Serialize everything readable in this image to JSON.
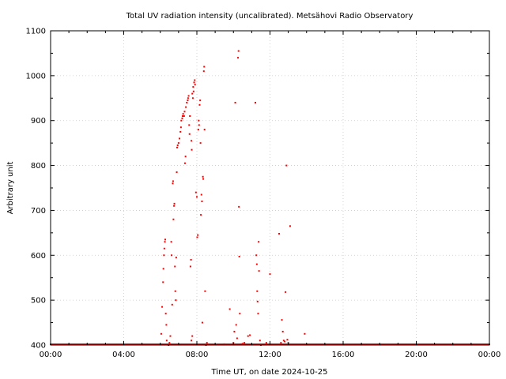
{
  "chart_data": {
    "type": "scatter",
    "title": "Total UV radiation intensity (uncalibrated). Metsähovi Radio Observatory",
    "xlabel": "Time UT, on date 2024-10-25",
    "ylabel": "Arbitrary unit",
    "xlim": [
      0,
      24
    ],
    "ylim": [
      400,
      1100
    ],
    "x_ticks": [
      0,
      4,
      8,
      12,
      16,
      20,
      24
    ],
    "x_tick_labels": [
      "00:00",
      "04:00",
      "08:00",
      "12:00",
      "16:00",
      "20:00",
      "00:00"
    ],
    "y_ticks": [
      400,
      500,
      600,
      700,
      800,
      900,
      1000,
      1100
    ],
    "y_tick_labels": [
      "400",
      "500",
      "600",
      "700",
      "800",
      "900",
      "1000",
      "1100"
    ],
    "grid": true,
    "marker_color": "#ff0000",
    "baseline": {
      "value": 400,
      "x_start": 0,
      "x_end": 24
    },
    "series": [
      {
        "points": [
          [
            6.05,
            425
          ],
          [
            6.1,
            485
          ],
          [
            6.15,
            540
          ],
          [
            6.17,
            570
          ],
          [
            6.2,
            600
          ],
          [
            6.22,
            615
          ],
          [
            6.25,
            630
          ],
          [
            6.27,
            635
          ],
          [
            6.3,
            470
          ],
          [
            6.33,
            445
          ],
          [
            6.35,
            410
          ],
          [
            6.45,
            400
          ],
          [
            6.5,
            405
          ],
          [
            6.55,
            420
          ],
          [
            6.6,
            630
          ],
          [
            6.62,
            600
          ],
          [
            6.65,
            490
          ],
          [
            6.68,
            760
          ],
          [
            6.7,
            765
          ],
          [
            6.72,
            680
          ],
          [
            6.75,
            710
          ],
          [
            6.77,
            715
          ],
          [
            6.8,
            575
          ],
          [
            6.82,
            520
          ],
          [
            6.85,
            500
          ],
          [
            6.87,
            595
          ],
          [
            6.9,
            785
          ],
          [
            6.92,
            840
          ],
          [
            6.95,
            845
          ],
          [
            7.0,
            850
          ],
          [
            7.05,
            860
          ],
          [
            7.1,
            875
          ],
          [
            7.13,
            885
          ],
          [
            7.15,
            900
          ],
          [
            7.2,
            905
          ],
          [
            7.22,
            910
          ],
          [
            7.25,
            915
          ],
          [
            7.3,
            910
          ],
          [
            7.33,
            920
          ],
          [
            7.35,
            805
          ],
          [
            7.38,
            820
          ],
          [
            7.4,
            930
          ],
          [
            7.45,
            940
          ],
          [
            7.5,
            945
          ],
          [
            7.52,
            950
          ],
          [
            7.55,
            955
          ],
          [
            7.58,
            890
          ],
          [
            7.6,
            870
          ],
          [
            7.62,
            910
          ],
          [
            7.65,
            575
          ],
          [
            7.68,
            590
          ],
          [
            7.7,
            855
          ],
          [
            7.72,
            835
          ],
          [
            7.75,
            960
          ],
          [
            7.78,
            950
          ],
          [
            7.8,
            975
          ],
          [
            7.82,
            965
          ],
          [
            7.85,
            985
          ],
          [
            7.88,
            990
          ],
          [
            7.9,
            980
          ],
          [
            7.95,
            740
          ],
          [
            8.0,
            730
          ],
          [
            8.02,
            640
          ],
          [
            8.05,
            645
          ],
          [
            8.08,
            880
          ],
          [
            8.1,
            900
          ],
          [
            8.12,
            890
          ],
          [
            8.15,
            935
          ],
          [
            8.18,
            945
          ],
          [
            8.2,
            850
          ],
          [
            8.22,
            690
          ],
          [
            8.25,
            735
          ],
          [
            8.28,
            720
          ],
          [
            8.3,
            450
          ],
          [
            8.33,
            775
          ],
          [
            8.35,
            770
          ],
          [
            8.38,
            1010
          ],
          [
            8.4,
            1020
          ],
          [
            8.42,
            880
          ],
          [
            8.45,
            520
          ],
          [
            8.5,
            400
          ],
          [
            8.55,
            405
          ],
          [
            7.7,
            410
          ],
          [
            7.75,
            420
          ],
          [
            9.5,
            402
          ],
          [
            9.8,
            480
          ],
          [
            10.0,
            405
          ],
          [
            10.05,
            430
          ],
          [
            10.1,
            940
          ],
          [
            10.15,
            445
          ],
          [
            10.2,
            415
          ],
          [
            10.25,
            1040
          ],
          [
            10.28,
            1055
          ],
          [
            10.3,
            708
          ],
          [
            10.32,
            597
          ],
          [
            10.35,
            470
          ],
          [
            10.4,
            402
          ],
          [
            10.5,
            403
          ],
          [
            10.6,
            405
          ],
          [
            10.8,
            420
          ],
          [
            10.9,
            422
          ],
          [
            11.2,
            940
          ],
          [
            11.25,
            600
          ],
          [
            11.28,
            580
          ],
          [
            11.3,
            520
          ],
          [
            11.32,
            497
          ],
          [
            11.35,
            470
          ],
          [
            11.38,
            630
          ],
          [
            11.4,
            565
          ],
          [
            11.45,
            410
          ],
          [
            11.5,
            400
          ],
          [
            11.8,
            405
          ],
          [
            12.0,
            558
          ],
          [
            12.5,
            648
          ],
          [
            12.6,
            405
          ],
          [
            12.65,
            456
          ],
          [
            12.7,
            430
          ],
          [
            12.75,
            410
          ],
          [
            12.8,
            408
          ],
          [
            12.85,
            518
          ],
          [
            12.9,
            800
          ],
          [
            12.95,
            412
          ],
          [
            13.0,
            405
          ],
          [
            13.1,
            665
          ],
          [
            13.9,
            425
          ]
        ]
      }
    ]
  }
}
